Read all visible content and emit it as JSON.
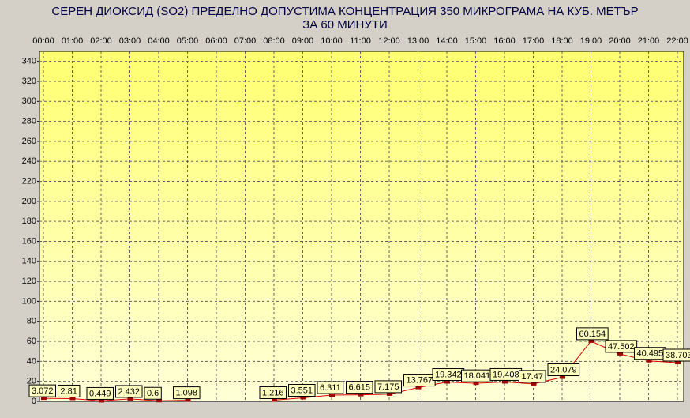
{
  "chart_data": {
    "type": "line",
    "title": [
      "СЕРЕН ДИОКСИД  (SO2)  ПРЕДЕЛНО ДОПУСТИМА КОНЦЕНТРАЦИЯ 350 МИКРОГРАМА  НА КУБ. МЕТЪР",
      "ЗА 60 МИНУТИ"
    ],
    "categories": [
      "00:00",
      "01:00",
      "02:00",
      "03:00",
      "04:00",
      "05:00",
      "06:00",
      "07:00",
      "08:00",
      "09:00",
      "10:00",
      "11:00",
      "12:00",
      "13:00",
      "14:00",
      "15:00",
      "16:00",
      "17:00",
      "18:00",
      "19:00",
      "20:00",
      "21:00",
      "22:00"
    ],
    "values": [
      3.072,
      2.81,
      0.449,
      2.432,
      0.6,
      1.098,
      null,
      null,
      1.216,
      3.551,
      6.311,
      6.615,
      7.175,
      13.767,
      19.342,
      18.041,
      19.408,
      17.47,
      24.079,
      60.154,
      47.502,
      40.495,
      38.703
    ],
    "color": "#e00000",
    "marker_color": "#a00000",
    "ylim": [
      0,
      350
    ],
    "yticks": [
      0,
      20,
      40,
      60,
      80,
      100,
      120,
      140,
      160,
      180,
      200,
      220,
      240,
      260,
      280,
      300,
      320,
      340
    ],
    "grid": true
  }
}
